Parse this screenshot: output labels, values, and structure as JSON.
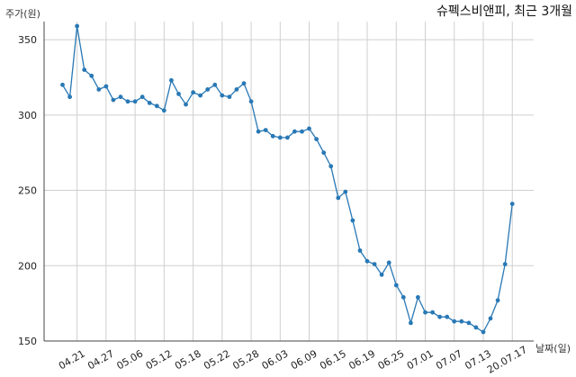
{
  "chart_data": {
    "type": "line",
    "title": "슈펙스비앤피, 최근 3개월",
    "ylabel": "주가(원)",
    "xlabel": "날짜(일)",
    "ylim": [
      150,
      362
    ],
    "yticks": [
      150,
      200,
      250,
      300,
      350
    ],
    "grid": true,
    "x_tick_labels": [
      "04.21",
      "04.27",
      "05.06",
      "05.12",
      "05.18",
      "05.22",
      "05.28",
      "06.03",
      "06.09",
      "06.15",
      "06.19",
      "06.25",
      "07.01",
      "07.07",
      "07.13",
      "20.07.17"
    ],
    "x_tick_positions": [
      2,
      6,
      10,
      14,
      18,
      22,
      26,
      30,
      34,
      38,
      42,
      46,
      50,
      54,
      58,
      62
    ],
    "series": [
      {
        "name": "",
        "color": "#2878b5",
        "x": [
          0,
          1,
          2,
          3,
          4,
          5,
          6,
          7,
          8,
          9,
          10,
          11,
          12,
          13,
          14,
          15,
          16,
          17,
          18,
          19,
          20,
          21,
          22,
          23,
          24,
          25,
          26,
          27,
          28,
          29,
          30,
          31,
          32,
          33,
          34,
          35,
          36,
          37,
          38,
          39,
          40,
          41,
          42,
          43,
          44,
          45,
          46,
          47,
          48,
          49,
          50,
          51,
          52,
          53,
          54,
          55,
          56,
          57,
          58,
          59,
          60,
          61,
          62
        ],
        "values": [
          320,
          312,
          359,
          330,
          326,
          317,
          319,
          310,
          312,
          309,
          309,
          312,
          308,
          306,
          303,
          323,
          314,
          307,
          315,
          313,
          317,
          320,
          313,
          312,
          317,
          321,
          309,
          289,
          290,
          286,
          285,
          285,
          289,
          289,
          291,
          284,
          275,
          266,
          245,
          249,
          230,
          210,
          203,
          201,
          194,
          202,
          187,
          179,
          162,
          179,
          169,
          169,
          166,
          166,
          163,
          163,
          162,
          159,
          156,
          165,
          177,
          201,
          241
        ]
      }
    ]
  }
}
